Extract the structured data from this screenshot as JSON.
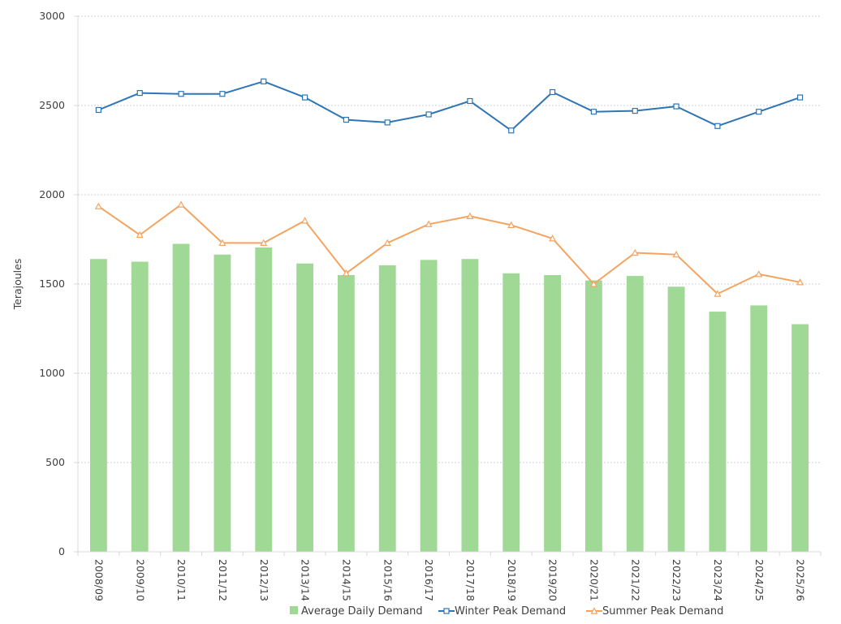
{
  "chart_data": {
    "type": "bar",
    "ylabel": "Terajoules",
    "xlabel": "",
    "ylim": [
      0,
      3000
    ],
    "yticks": [
      0,
      500,
      1000,
      1500,
      2000,
      2500,
      3000
    ],
    "grid": true,
    "legend_position": "bottom",
    "categories": [
      "2008/09",
      "2009/10",
      "2010/11",
      "2011/12",
      "2012/13",
      "2013/14",
      "2014/15",
      "2015/16",
      "2016/17",
      "2017/18",
      "2018/19",
      "2019/20",
      "2020/21",
      "2021/22",
      "2022/23",
      "2023/24",
      "2024/25",
      "2025/26"
    ],
    "series": [
      {
        "name": "Average Daily Demand",
        "type": "bar",
        "color": "#a0d995",
        "values": [
          1640,
          1625,
          1725,
          1665,
          1705,
          1615,
          1550,
          1605,
          1635,
          1640,
          1560,
          1550,
          1520,
          1545,
          1485,
          1345,
          1380,
          1275
        ]
      },
      {
        "name": "Winter Peak Demand",
        "type": "line",
        "marker": "square",
        "color": "#2e75b6",
        "values": [
          2475,
          2570,
          2565,
          2565,
          2635,
          2545,
          2420,
          2405,
          2450,
          2525,
          2360,
          2575,
          2465,
          2470,
          2495,
          2385,
          2465,
          2545
        ]
      },
      {
        "name": "Summer Peak Demand",
        "type": "line",
        "marker": "triangle",
        "color": "#f4a460",
        "values": [
          1935,
          1775,
          1945,
          1730,
          1730,
          1855,
          1560,
          1730,
          1835,
          1880,
          1830,
          1755,
          1500,
          1675,
          1665,
          1445,
          1555,
          1510
        ]
      }
    ]
  }
}
